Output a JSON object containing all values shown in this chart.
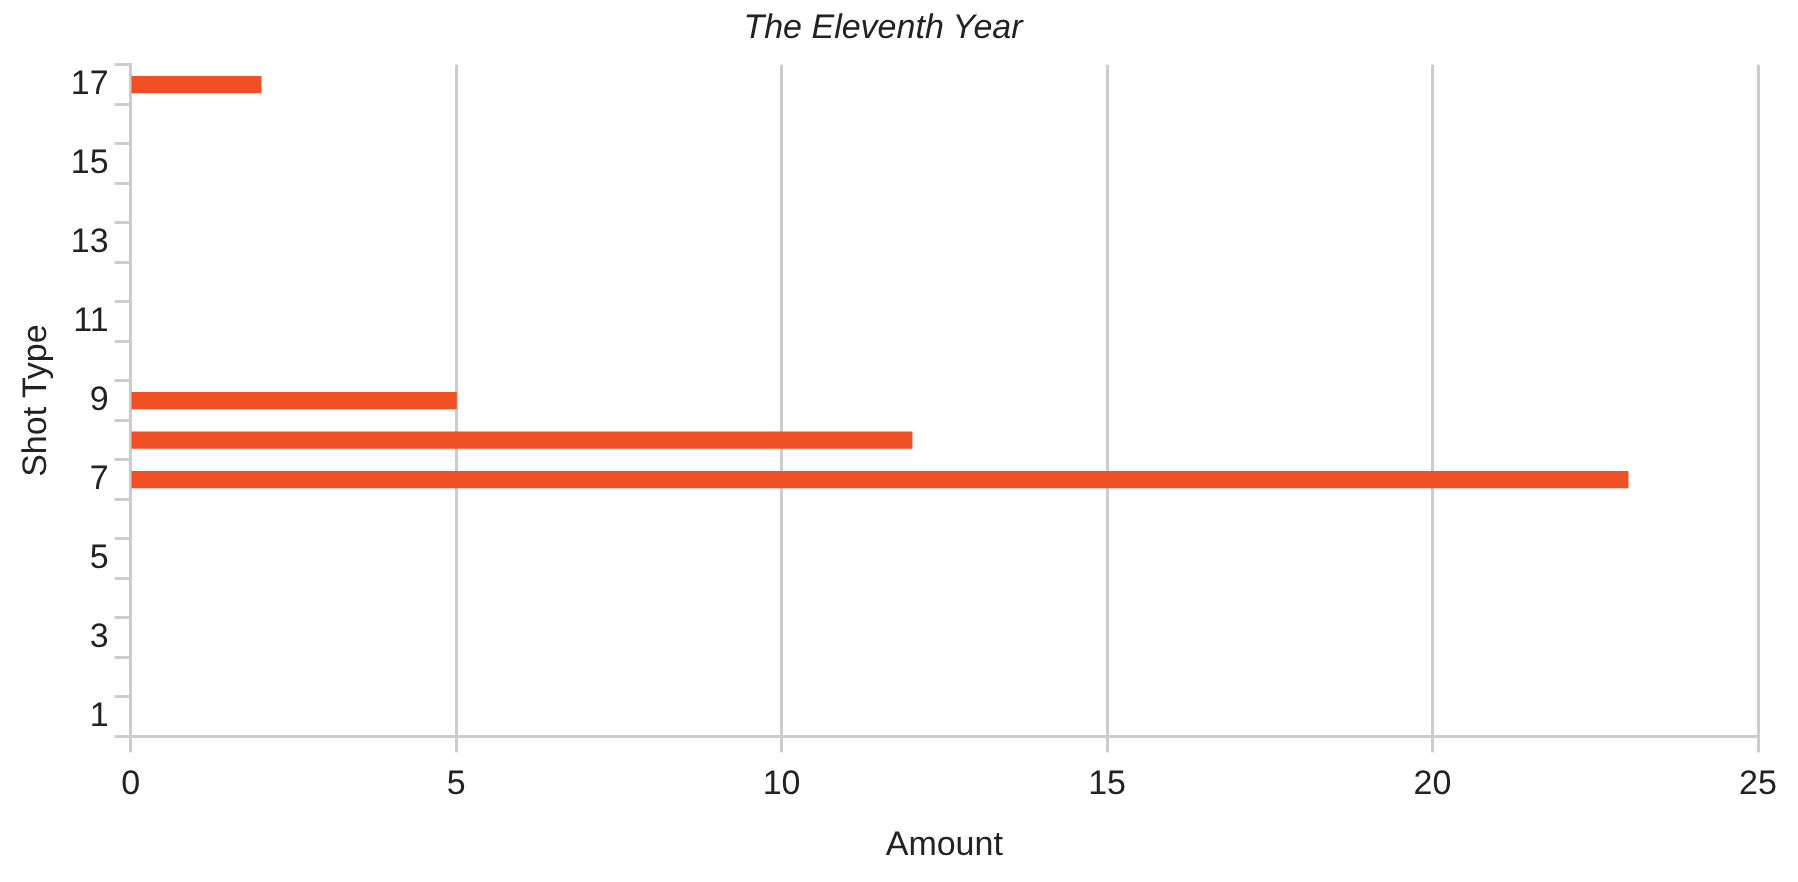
{
  "chart_data": {
    "type": "bar",
    "orientation": "horizontal",
    "title": "The Eleventh Year",
    "xlabel": "Amount",
    "ylabel": "Shot Type",
    "categories": [
      "17",
      null,
      "15",
      null,
      "13",
      null,
      "11",
      null,
      "9",
      null,
      "7",
      null,
      "5",
      null,
      "3",
      null,
      "1"
    ],
    "values": [
      2,
      null,
      null,
      null,
      null,
      null,
      null,
      null,
      5,
      12,
      23,
      null,
      null,
      null,
      null,
      null,
      null
    ],
    "color": "#f05023",
    "xlim": [
      0,
      25
    ],
    "xticks": [
      0,
      5,
      10,
      15,
      20,
      25
    ],
    "grid": "x",
    "legend": false
  }
}
